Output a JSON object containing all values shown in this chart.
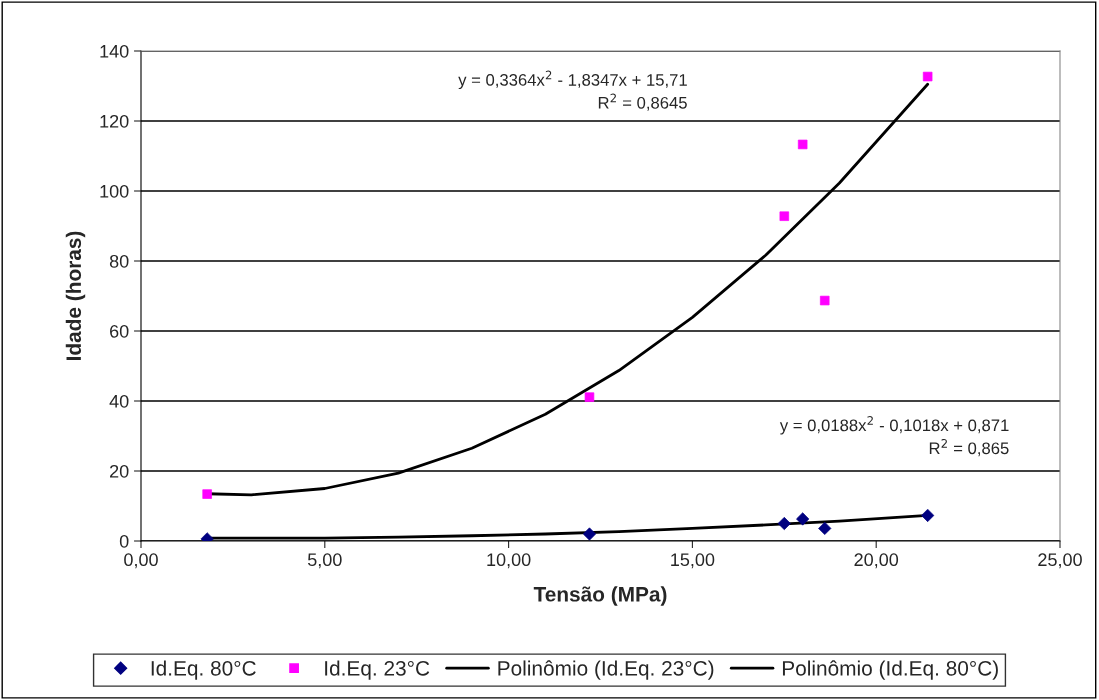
{
  "chart_data": {
    "type": "scatter",
    "xlabel": "Tensão (MPa)",
    "ylabel": "Idade (horas)",
    "xlim": [
      0,
      25
    ],
    "ylim": [
      0,
      140
    ],
    "xticks": [
      {
        "value": 0,
        "label": "0,00"
      },
      {
        "value": 5,
        "label": "5,00"
      },
      {
        "value": 10,
        "label": "10,00"
      },
      {
        "value": 15,
        "label": "15,00"
      },
      {
        "value": 20,
        "label": "20,00"
      },
      {
        "value": 25,
        "label": "25,00"
      }
    ],
    "yticks": [
      0,
      20,
      40,
      60,
      80,
      100,
      120,
      140
    ],
    "grid": "y",
    "legend": "bottom",
    "annotations": [
      "y = 0,3364x$^{2}$ - 1,8347x + 15,71\nR$^{2}$ = 0,8645",
      "y = 0,0188x$^{2}$ - 0,1018x + 0,871\nR$^{2}$ = 0,865"
    ],
    "series": [
      {
        "name": "Id.Eq. 80°C",
        "marker": "diamond",
        "color": "#000080",
        "x": [
          1.8,
          12.2,
          17.5,
          18.0,
          18.6,
          21.4
        ],
        "values": [
          0.6,
          2.0,
          5.0,
          6.3,
          3.6,
          7.3
        ]
      },
      {
        "name": "Id.Eq. 23°C",
        "marker": "square",
        "color": "#ff00ff",
        "x": [
          1.8,
          12.2,
          17.5,
          18.0,
          18.6,
          21.4
        ],
        "values": [
          13.4,
          41.1,
          92.8,
          113.3,
          68.7,
          132.7
        ]
      },
      {
        "name": "Polinômio (Id.Eq. 23°C)",
        "type": "line",
        "marker": "none",
        "line_style": "solid",
        "color": "#000000",
        "x": [
          1.8,
          3,
          5,
          7,
          9,
          11,
          13,
          15,
          17,
          19,
          21.4
        ],
        "values": [
          13.5,
          13.2,
          15.0,
          19.4,
          26.5,
          36.2,
          48.7,
          63.9,
          81.7,
          102.3,
          130.5
        ]
      },
      {
        "name": "Polinômio (Id.Eq. 80°C)",
        "type": "line",
        "marker": "none",
        "line_style": "solid",
        "color": "#000000",
        "x": [
          1.8,
          5,
          7,
          9,
          11,
          13,
          15,
          17,
          19,
          21.4
        ],
        "values": [
          0.8,
          0.8,
          1.1,
          1.5,
          2.0,
          2.7,
          3.6,
          4.6,
          5.7,
          7.3
        ]
      }
    ]
  }
}
